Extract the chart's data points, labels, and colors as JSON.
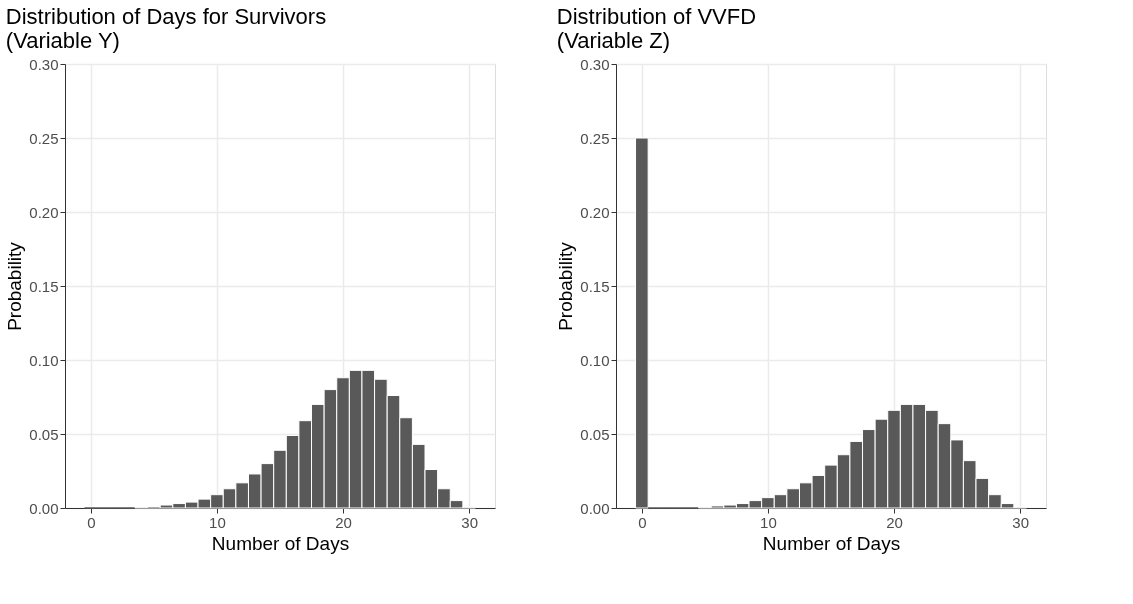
{
  "chart_data": [
    {
      "type": "histogram",
      "title": "Distribution of Days for Survivors\n(Variable Y)",
      "xlabel": "Number of Days",
      "ylabel": "Probability",
      "color": "#595959",
      "bins": [
        -0.5,
        0.5,
        1.5,
        2.5,
        3.5,
        4.5,
        5.5,
        6.5,
        7.5,
        8.5,
        9.5,
        10.5,
        11.5,
        12.5,
        13.5,
        14.5,
        15.5,
        16.5,
        17.5,
        18.5,
        19.5,
        20.5,
        21.5,
        22.5,
        23.5,
        24.5,
        25.5,
        26.5,
        27.5,
        28.5,
        29.5,
        30.5
      ],
      "values": [
        0,
        0,
        0,
        0,
        0.0005,
        0.001,
        0.002,
        0.003,
        0.004,
        0.006,
        0.009,
        0.013,
        0.017,
        0.023,
        0.03,
        0.039,
        0.049,
        0.059,
        0.07,
        0.08,
        0.088,
        0.093,
        0.093,
        0.087,
        0.076,
        0.061,
        0.043,
        0.026,
        0.013,
        0.005,
        0.0005
      ],
      "xlim": [
        -2.05,
        32.05
      ],
      "xticks": [
        0,
        10,
        20,
        30
      ],
      "ylim": [
        0,
        0.3
      ],
      "yticks": [
        {
          "value": 0,
          "label": "0.00"
        },
        0.05,
        {
          "value": 0.1,
          "label": "0.10"
        },
        0.15,
        {
          "value": 0.2,
          "label": "0.20"
        },
        0.25,
        {
          "value": 0.3,
          "label": "0.30"
        }
      ],
      "grid": true
    },
    {
      "type": "histogram",
      "title": "Distribution of VVFD\n(Variable Z)",
      "xlabel": "Number of Days",
      "ylabel": "Probability",
      "color": "#595959",
      "bins": [
        -0.5,
        0.5,
        1.5,
        2.5,
        3.5,
        4.5,
        5.5,
        6.5,
        7.5,
        8.5,
        9.5,
        10.5,
        11.5,
        12.5,
        13.5,
        14.5,
        15.5,
        16.5,
        17.5,
        18.5,
        19.5,
        20.5,
        21.5,
        22.5,
        23.5,
        24.5,
        25.5,
        26.5,
        27.5,
        28.5,
        29.5,
        30.5
      ],
      "values": [
        0.25,
        0,
        0,
        0,
        0,
        0.0005,
        0.0014,
        0.002,
        0.003,
        0.005,
        0.007,
        0.009,
        0.013,
        0.017,
        0.022,
        0.029,
        0.036,
        0.045,
        0.053,
        0.06,
        0.066,
        0.07,
        0.07,
        0.066,
        0.057,
        0.046,
        0.032,
        0.02,
        0.009,
        0.003,
        0.0005
      ],
      "xlim": [
        -2.05,
        32.05
      ],
      "xticks": [
        0,
        10,
        20,
        30
      ],
      "ylim": [
        0,
        0.3
      ],
      "yticks": [
        {
          "value": 0,
          "label": "0.00"
        },
        0.05,
        {
          "value": 0.1,
          "label": "0.10"
        },
        0.15,
        {
          "value": 0.2,
          "label": "0.20"
        },
        0.25,
        {
          "value": 0.3,
          "label": "0.30"
        }
      ],
      "grid": true
    }
  ]
}
